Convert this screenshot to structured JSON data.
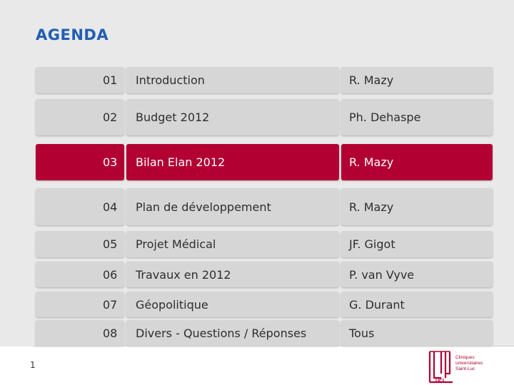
{
  "title": "AGENDA",
  "page_number": "1",
  "agenda": [
    {
      "num": "01",
      "topic": "Introduction",
      "presenter": "R. Mazy"
    },
    {
      "num": "02",
      "topic": "Budget 2012",
      "presenter": "Ph. Dehaspe"
    },
    {
      "num": "03",
      "topic": "Bilan Elan 2012",
      "presenter": "R. Mazy"
    },
    {
      "num": "04",
      "topic": "Plan de développement",
      "presenter": "R. Mazy"
    },
    {
      "num": "05",
      "topic": "Projet Médical",
      "presenter": "JF. Gigot"
    },
    {
      "num": "06",
      "topic": "Travaux en 2012",
      "presenter": "P. van Vyve"
    },
    {
      "num": "07",
      "topic": "Géopolitique",
      "presenter": "G. Durant"
    },
    {
      "num": "08",
      "topic": "Divers - Questions / Réponses",
      "presenter": "Tous"
    }
  ],
  "highlight_color": "#b20033",
  "logo": {
    "line1": "Cliniques",
    "line2": "universitaires",
    "line3": "Saint-Luc",
    "abbr": "UCL"
  }
}
